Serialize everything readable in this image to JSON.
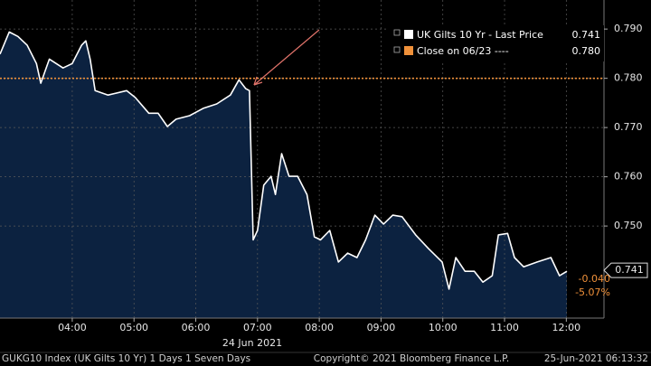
{
  "chart_data": {
    "type": "line",
    "x": [
      2.83,
      2.98,
      3.12,
      3.27,
      3.42,
      3.49,
      3.63,
      3.85,
      4.0,
      4.15,
      4.22,
      4.29,
      4.37,
      4.58,
      4.88,
      5.02,
      5.24,
      5.39,
      5.54,
      5.68,
      5.9,
      6.12,
      6.34,
      6.56,
      6.7,
      6.81,
      6.87,
      6.93,
      7.0,
      7.1,
      7.22,
      7.29,
      7.39,
      7.51,
      7.65,
      7.8,
      7.92,
      8.02,
      8.17,
      8.31,
      8.46,
      8.61,
      8.75,
      8.9,
      9.04,
      9.19,
      9.34,
      9.56,
      9.77,
      9.99,
      10.1,
      10.21,
      10.36,
      10.51,
      10.65,
      10.8,
      10.9,
      11.05,
      11.16,
      11.31,
      11.53,
      11.75,
      11.89,
      12.01
    ],
    "series": [
      {
        "name": "UK Gilts 10 Yr - Last Price",
        "color": "#ffffff",
        "fill": "#0c2240",
        "legend_value": 0.741,
        "values": [
          0.7849,
          0.7894,
          0.7885,
          0.7867,
          0.783,
          0.779,
          0.7839,
          0.7821,
          0.783,
          0.7867,
          0.7876,
          0.7839,
          0.7775,
          0.7766,
          0.7775,
          0.7761,
          0.7729,
          0.7729,
          0.7702,
          0.7717,
          0.7724,
          0.7739,
          0.7748,
          0.7766,
          0.7797,
          0.7779,
          0.7775,
          0.7472,
          0.7491,
          0.7583,
          0.7601,
          0.7564,
          0.7647,
          0.7601,
          0.7601,
          0.7564,
          0.7478,
          0.7472,
          0.7491,
          0.7427,
          0.7445,
          0.7436,
          0.7472,
          0.7522,
          0.7504,
          0.7522,
          0.7519,
          0.7482,
          0.7454,
          0.7427,
          0.7372,
          0.7436,
          0.7408,
          0.7408,
          0.7386,
          0.7399,
          0.7482,
          0.7485,
          0.7436,
          0.7417,
          0.7427,
          0.7436,
          0.7399,
          0.7408
        ]
      }
    ],
    "reference_line": {
      "name": "Close on 06/23 ----",
      "color": "#f0913a",
      "value": 0.78,
      "legend_value": {
        "value": 0.78,
        "label": "0.780"
      }
    },
    "last_value": 0.741,
    "change": {
      "value": -0.04,
      "label": "-0.040"
    },
    "change_percent": {
      "value": -5.07,
      "label": "-5.07%"
    },
    "date_label": "24 Jun 2021",
    "xlim": [
      2.83,
      12.61
    ],
    "xticks": [
      {
        "value": 4,
        "label": "04:00"
      },
      {
        "value": 5,
        "label": "05:00"
      },
      {
        "value": 6,
        "label": "06:00"
      },
      {
        "value": 7,
        "label": "07:00"
      },
      {
        "value": 8,
        "label": "08:00"
      },
      {
        "value": 9,
        "label": "09:00"
      },
      {
        "value": 10,
        "label": "10:00"
      },
      {
        "value": 11,
        "label": "11:00"
      },
      {
        "value": 12,
        "label": "12:00"
      }
    ],
    "ylim": [
      0.7313,
      0.7959
    ],
    "yticks": [
      {
        "value": 0.79,
        "label": "0.790"
      },
      {
        "value": 0.78,
        "label": "0.780"
      },
      {
        "value": 0.77,
        "label": "0.770"
      },
      {
        "value": 0.76,
        "label": "0.760"
      },
      {
        "value": 0.75,
        "label": "0.750"
      }
    ],
    "grid": true,
    "footer": {
      "left": "GUKG10 Index (UK Gilts 10 Yr) 1 Days 1 Seven Days",
      "center": "Copyright© 2021 Bloomberg Finance L.P.",
      "right": "25-Jun-2021 06:13:32"
    }
  }
}
